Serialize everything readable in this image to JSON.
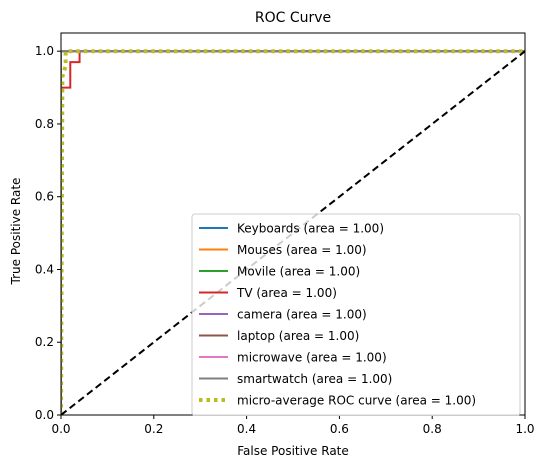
{
  "chart_data": {
    "type": "line",
    "title": "ROC Curve",
    "xlabel": "False Positive Rate",
    "ylabel": "True Positive Rate",
    "xlim": [
      0,
      1
    ],
    "ylim": [
      0,
      1.05
    ],
    "xticks": [
      "0.0",
      "0.2",
      "0.4",
      "0.6",
      "0.8",
      "1.0"
    ],
    "yticks": [
      "0.0",
      "0.2",
      "0.4",
      "0.6",
      "0.8",
      "1.0"
    ],
    "grid": false,
    "legend_position": "lower-right",
    "series": [
      {
        "name": "Keyboards (area = 1.00)",
        "color": "#1f77b4",
        "style": "solid",
        "x": [
          0,
          0,
          1
        ],
        "y": [
          0,
          1,
          1
        ]
      },
      {
        "name": "Mouses (area = 1.00)",
        "color": "#ff7f0e",
        "style": "solid",
        "x": [
          0,
          0,
          1
        ],
        "y": [
          0,
          1,
          1
        ]
      },
      {
        "name": "Movile (area = 1.00)",
        "color": "#2ca02c",
        "style": "solid",
        "x": [
          0,
          0,
          1
        ],
        "y": [
          0,
          1,
          1
        ]
      },
      {
        "name": "TV (area = 1.00)",
        "color": "#d62728",
        "style": "solid",
        "x": [
          0,
          0,
          0.02,
          0.02,
          0.04,
          0.04,
          1
        ],
        "y": [
          0,
          0.9,
          0.9,
          0.97,
          0.97,
          1,
          1
        ]
      },
      {
        "name": "camera (area = 1.00)",
        "color": "#9467bd",
        "style": "solid",
        "x": [
          0,
          0,
          1
        ],
        "y": [
          0,
          1,
          1
        ]
      },
      {
        "name": "laptop (area = 1.00)",
        "color": "#8c564b",
        "style": "solid",
        "x": [
          0,
          0,
          1
        ],
        "y": [
          0,
          1,
          1
        ]
      },
      {
        "name": "microwave (area = 1.00)",
        "color": "#e377c2",
        "style": "solid",
        "x": [
          0,
          0,
          1
        ],
        "y": [
          0,
          1,
          1
        ]
      },
      {
        "name": "smartwatch (area = 1.00)",
        "color": "#7f7f7f",
        "style": "solid",
        "x": [
          0,
          0,
          1
        ],
        "y": [
          0,
          1,
          1
        ]
      },
      {
        "name": "micro-average ROC curve (area = 1.00)",
        "color": "#bcbd22",
        "style": "dotted",
        "x": [
          0,
          0.003,
          0.01,
          0.01,
          1
        ],
        "y": [
          0,
          0.93,
          0.96,
          1,
          1
        ]
      }
    ],
    "reference_line": {
      "x": [
        0,
        1
      ],
      "y": [
        0,
        1
      ],
      "color": "#000000",
      "style": "dashed"
    }
  }
}
